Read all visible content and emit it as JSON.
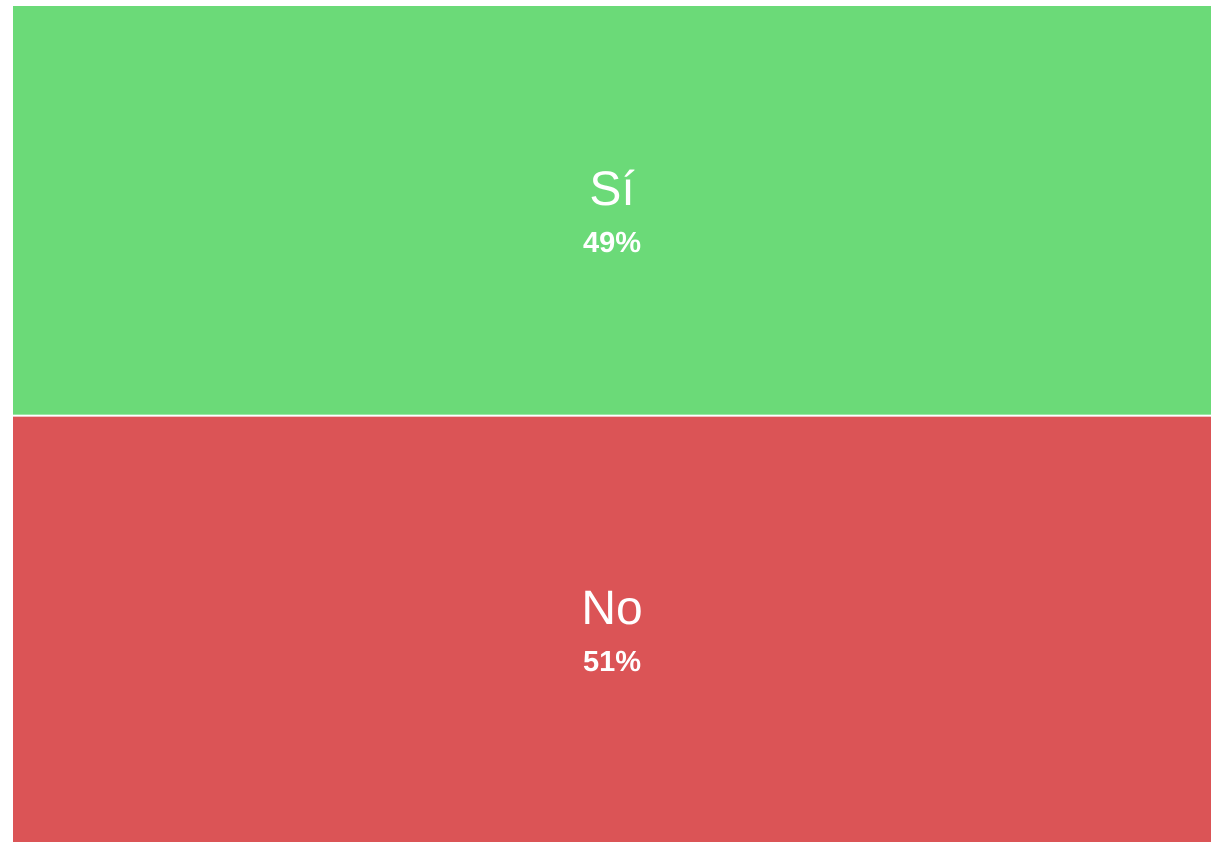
{
  "chart_data": {
    "type": "treemap",
    "categories": [
      "Sí",
      "No"
    ],
    "values": [
      49,
      51
    ],
    "value_labels": [
      "49%",
      "51%"
    ],
    "colors": [
      "#6bda78",
      "#db5456"
    ]
  }
}
